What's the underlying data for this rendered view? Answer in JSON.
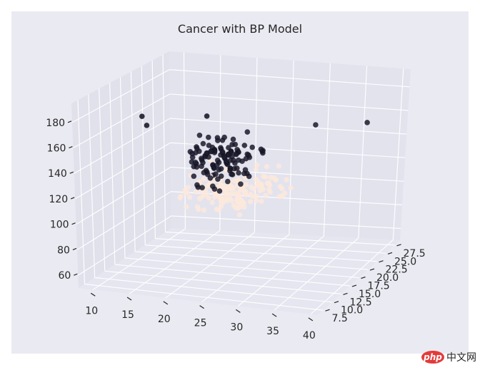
{
  "chart_data": {
    "type": "scatter",
    "title": "Cancer with BP Model",
    "xlabel": "",
    "ylabel": "",
    "zlabel": "",
    "x_ticks": [
      "10",
      "15",
      "20",
      "25",
      "30",
      "35",
      "40"
    ],
    "y_ticks": [
      "7.5",
      "10.0",
      "12.5",
      "15.0",
      "17.5",
      "20.0",
      "22.5",
      "25.0",
      "27.5"
    ],
    "z_ticks": [
      "60",
      "80",
      "100",
      "120",
      "140",
      "160",
      "180"
    ],
    "xlim": [
      8,
      41
    ],
    "ylim": [
      6,
      29
    ],
    "zlim": [
      50,
      195
    ],
    "grid": true,
    "pane_color": "#eaeaf2",
    "colors": {
      "dark": "#1b1a2e",
      "light": "#fde9dc"
    }
  },
  "watermark": {
    "badge": "php",
    "text": "中文网"
  }
}
